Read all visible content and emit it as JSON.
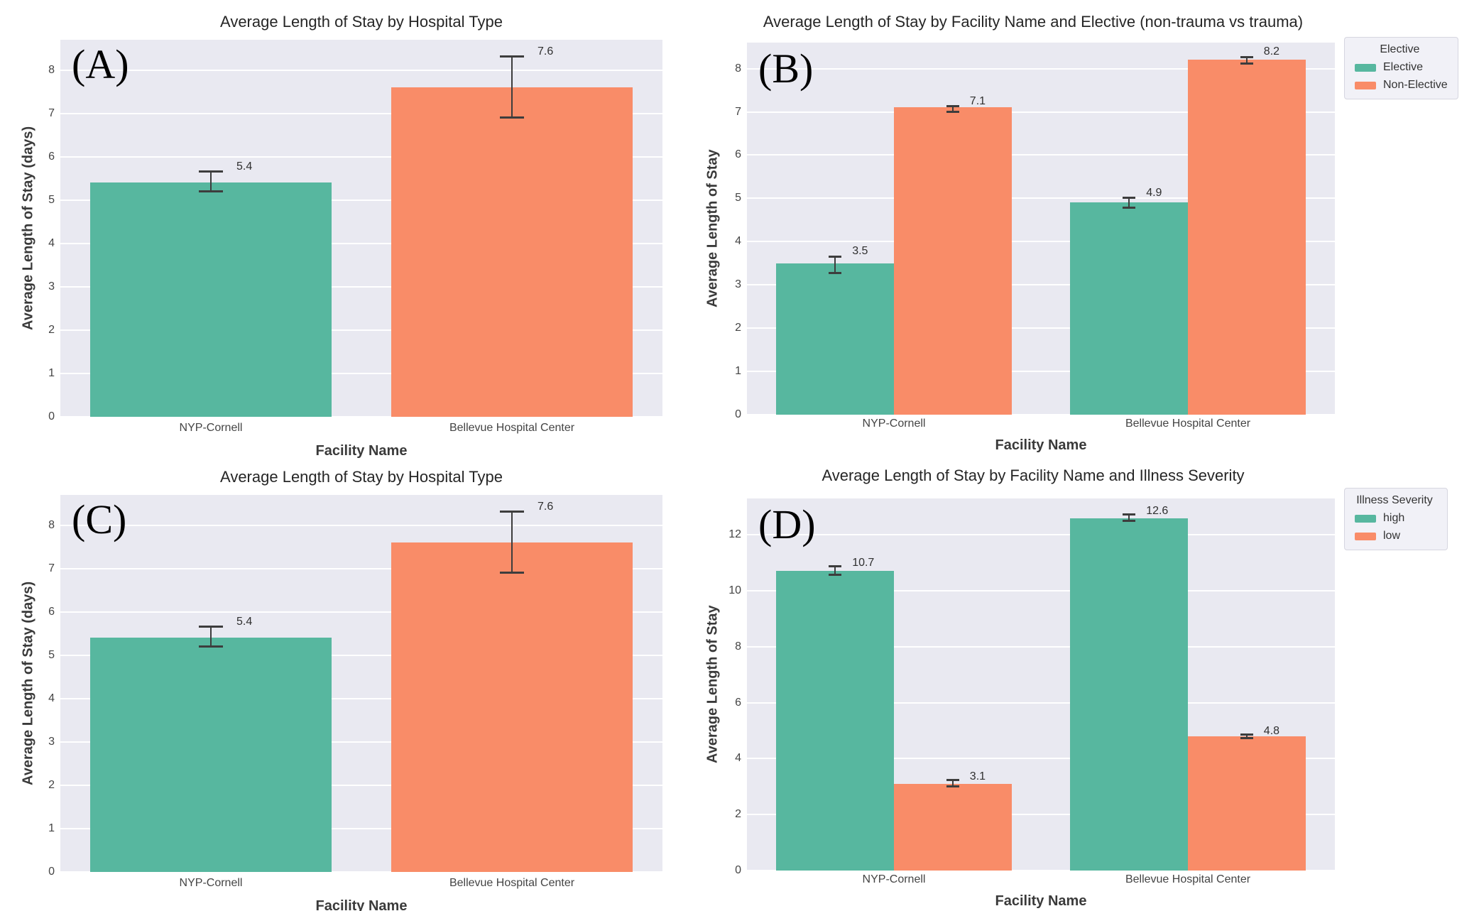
{
  "colors": {
    "green": "#57b79f",
    "orange": "#f98c68",
    "plot_bg": "#e9e9f1",
    "grid": "#ffffff",
    "error_bar": "#3d3d3d",
    "text": "#3a3a3a",
    "title": "#262626",
    "legend_bg": "#f1f1f7",
    "legend_border": "#d6d6e0"
  },
  "chart_data": [
    {
      "panel_label": "(A)",
      "type": "bar",
      "title": "Average Length of Stay by Hospital Type",
      "xlabel": "Facility Name",
      "ylabel": "Average Length of Stay (days)",
      "categories": [
        "NYP-Cornell",
        "Bellevue Hospital Center"
      ],
      "yticks": [
        0,
        1,
        2,
        3,
        4,
        5,
        6,
        7,
        8
      ],
      "ymax": 8.7,
      "grid": true,
      "legend": null,
      "series": [
        {
          "name": null,
          "colors": [
            "green",
            "orange"
          ],
          "values": [
            5.4,
            7.6
          ],
          "labels": [
            "5.4",
            "7.6"
          ],
          "errors_low": [
            5.2,
            6.9
          ],
          "errors_high": [
            5.65,
            8.3
          ]
        }
      ]
    },
    {
      "panel_label": "(B)",
      "type": "bar",
      "title": "Average Length of Stay by Facility Name and Elective (non-trauma vs trauma)",
      "xlabel": "Facility Name",
      "ylabel": "Average Length of Stay",
      "categories": [
        "NYP-Cornell",
        "Bellevue Hospital Center"
      ],
      "yticks": [
        0,
        1,
        2,
        3,
        4,
        5,
        6,
        7,
        8
      ],
      "ymax": 8.6,
      "grid": true,
      "legend": {
        "title": "Elective",
        "position": "outside-top-right",
        "entries": [
          {
            "label": "Elective",
            "color": "green"
          },
          {
            "label": "Non-Elective",
            "color": "orange"
          }
        ]
      },
      "series": [
        {
          "name": "Elective",
          "color": "green",
          "values": [
            3.5,
            4.9
          ],
          "labels": [
            "3.5",
            "4.9"
          ],
          "errors_low": [
            3.27,
            4.78
          ],
          "errors_high": [
            3.65,
            5.0
          ]
        },
        {
          "name": "Non-Elective",
          "color": "orange",
          "values": [
            7.1,
            8.2
          ],
          "labels": [
            "7.1",
            "8.2"
          ],
          "errors_low": [
            7.0,
            8.1
          ],
          "errors_high": [
            7.12,
            8.26
          ]
        }
      ]
    },
    {
      "panel_label": "(C)",
      "type": "bar",
      "title": "Average Length of Stay by Hospital Type",
      "xlabel": "Facility Name",
      "ylabel": "Average Length of Stay (days)",
      "categories": [
        "NYP-Cornell",
        "Bellevue Hospital Center"
      ],
      "yticks": [
        0,
        1,
        2,
        3,
        4,
        5,
        6,
        7,
        8
      ],
      "ymax": 8.7,
      "grid": true,
      "legend": null,
      "series": [
        {
          "name": null,
          "colors": [
            "green",
            "orange"
          ],
          "values": [
            5.4,
            7.6
          ],
          "labels": [
            "5.4",
            "7.6"
          ],
          "errors_low": [
            5.2,
            6.9
          ],
          "errors_high": [
            5.65,
            8.3
          ]
        }
      ]
    },
    {
      "panel_label": "(D)",
      "type": "bar",
      "title": "Average Length of Stay by Facility Name and Illness Severity",
      "xlabel": "Facility Name",
      "ylabel": "Average Length of Stay",
      "categories": [
        "NYP-Cornell",
        "Bellevue Hospital Center"
      ],
      "yticks": [
        0,
        2,
        4,
        6,
        8,
        10,
        12
      ],
      "ymax": 13.3,
      "grid": true,
      "legend": {
        "title": "Illness Severity",
        "position": "outside-top-right",
        "entries": [
          {
            "label": "high",
            "color": "green"
          },
          {
            "label": "low",
            "color": "orange"
          }
        ]
      },
      "series": [
        {
          "name": "high",
          "color": "green",
          "values": [
            10.7,
            12.6
          ],
          "labels": [
            "10.7",
            "12.6"
          ],
          "errors_low": [
            10.55,
            12.5
          ],
          "errors_high": [
            10.87,
            12.72
          ]
        },
        {
          "name": "low",
          "color": "orange",
          "values": [
            3.1,
            4.8
          ],
          "labels": [
            "3.1",
            "4.8"
          ],
          "errors_low": [
            3.0,
            4.73
          ],
          "errors_high": [
            3.22,
            4.85
          ]
        }
      ]
    }
  ]
}
